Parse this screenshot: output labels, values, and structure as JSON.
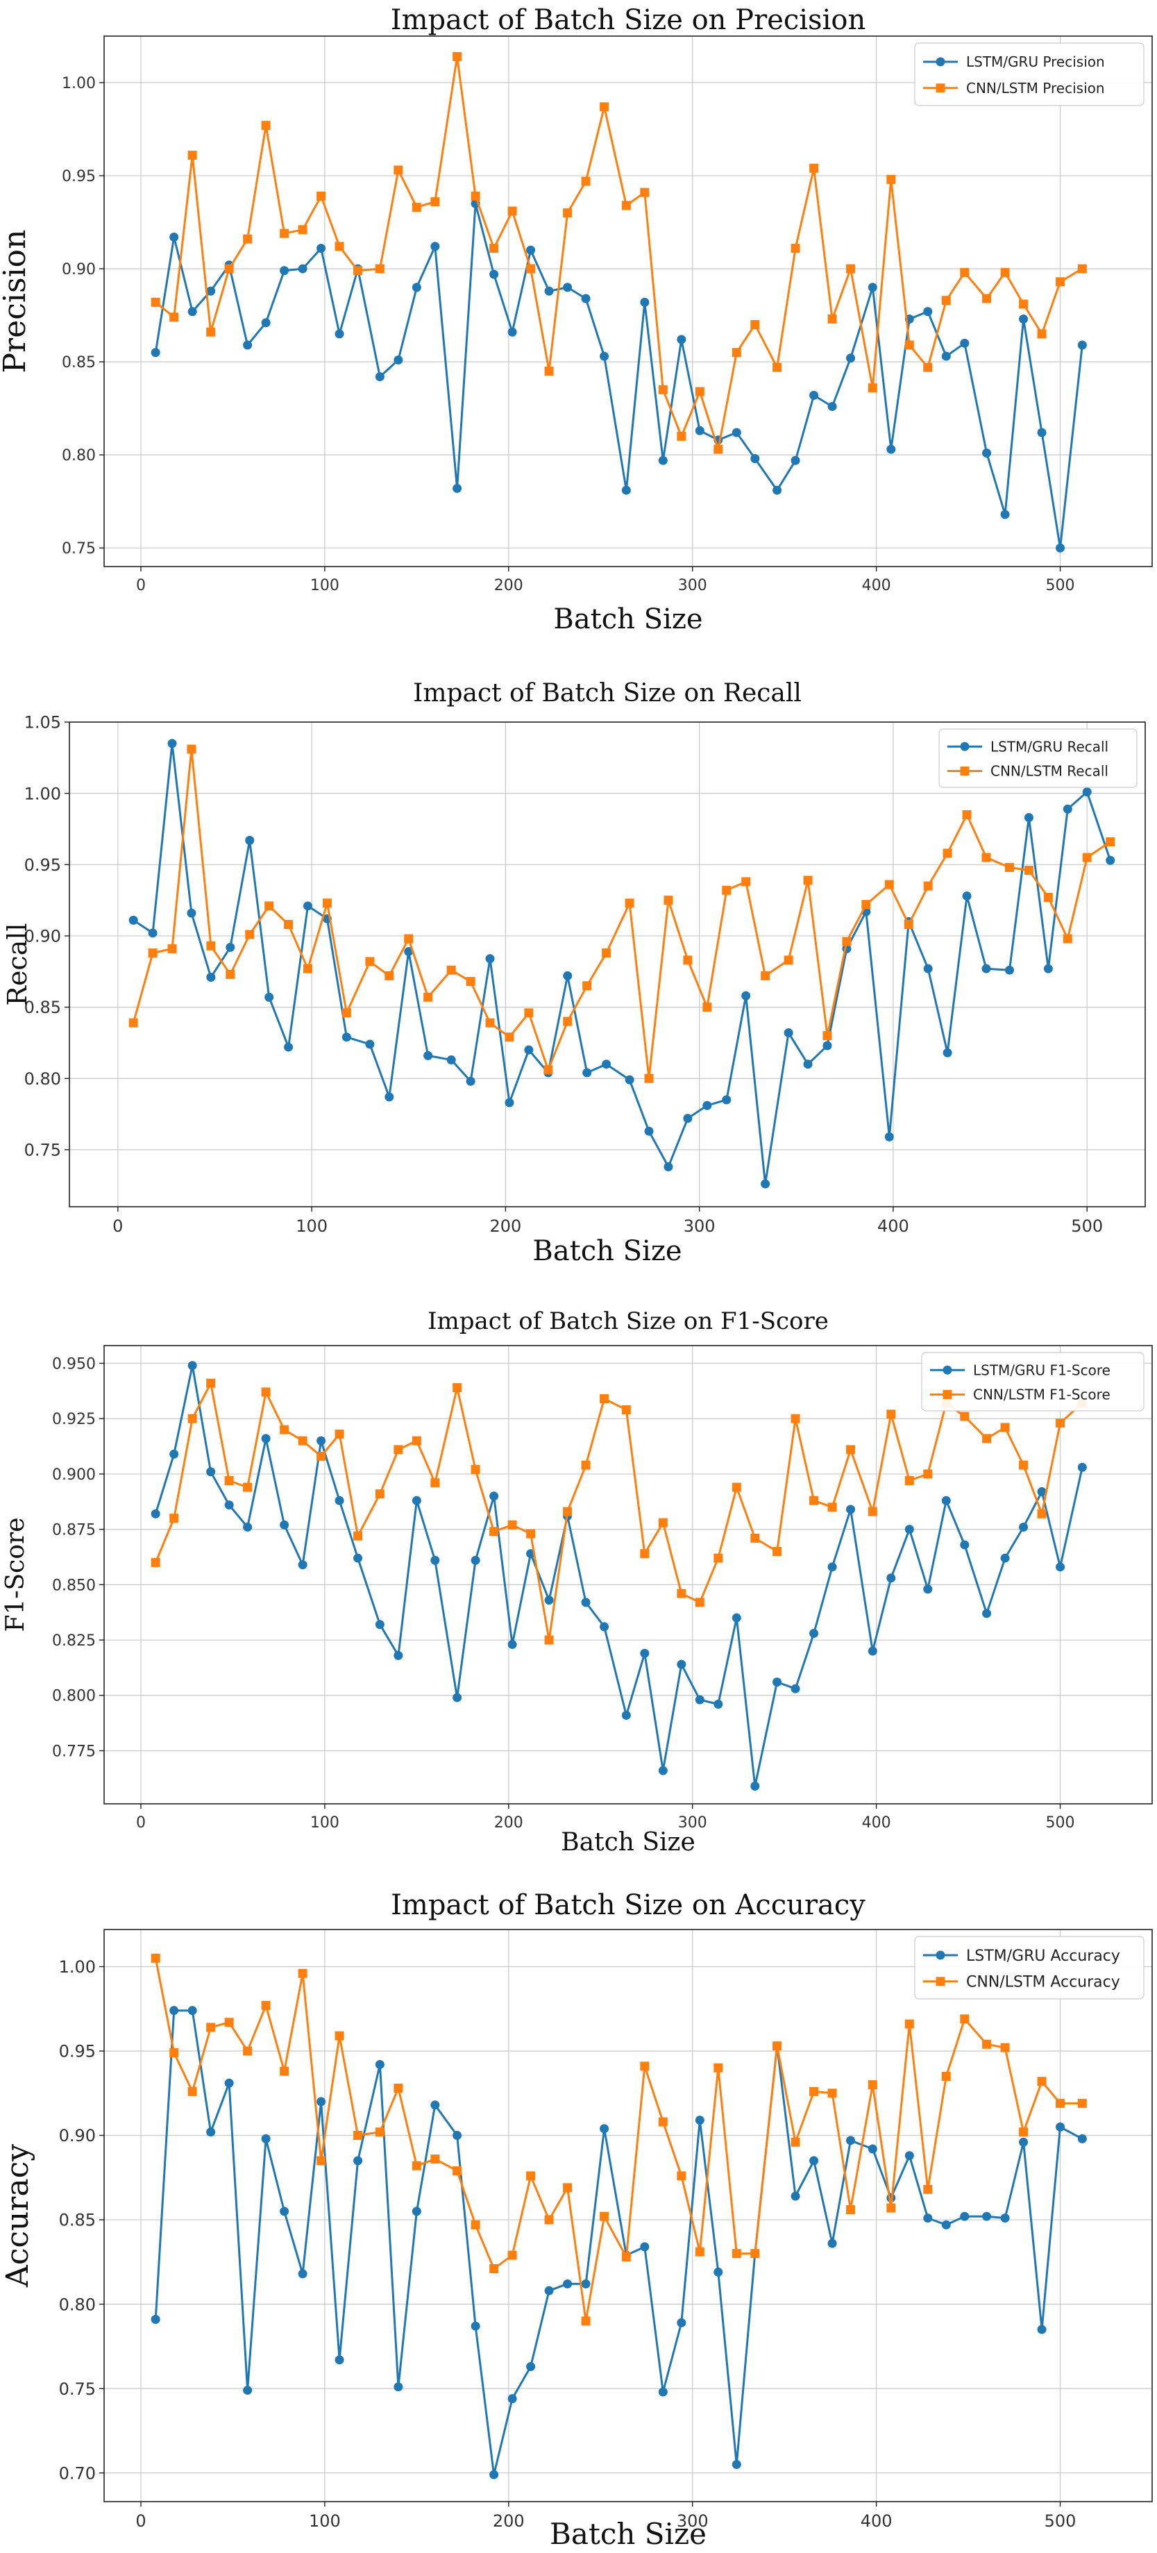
{
  "chart_data": [
    {
      "type": "line",
      "title": "Impact of Batch Size on Precision",
      "xlabel": "Batch Size",
      "ylabel": "Precision",
      "xlim": [
        -20,
        550
      ],
      "ylim": [
        0.74,
        1.025
      ],
      "x_ticks": [
        0,
        100,
        200,
        300,
        400,
        500
      ],
      "y_ticks": [
        0.75,
        0.8,
        0.85,
        0.9,
        0.95,
        1.0
      ],
      "y_tick_labels": [
        "0.75",
        "0.80",
        "0.85",
        "0.90",
        "0.95",
        "1.00"
      ],
      "grid": true,
      "legend_position": "top-right",
      "x": [
        8,
        18,
        28,
        38,
        48,
        58,
        68,
        78,
        88,
        98,
        108,
        118,
        130,
        140,
        150,
        160,
        172,
        182,
        192,
        202,
        212,
        222,
        232,
        242,
        252,
        264,
        274,
        284,
        294,
        304,
        314,
        324,
        334,
        346,
        356,
        366,
        376,
        386,
        398,
        408,
        418,
        428,
        438,
        448,
        460,
        470,
        480,
        490,
        500,
        512
      ],
      "series": [
        {
          "name": "LSTM/GRU Precision",
          "color": "#1f77b4",
          "marker": "circle",
          "values": [
            0.855,
            0.917,
            0.877,
            0.888,
            0.902,
            0.859,
            0.871,
            0.899,
            0.9,
            0.911,
            0.865,
            0.9,
            0.842,
            0.851,
            0.89,
            0.912,
            0.782,
            0.935,
            0.897,
            0.866,
            0.91,
            0.888,
            0.89,
            0.884,
            0.853,
            0.781,
            0.882,
            0.797,
            0.862,
            0.813,
            0.808,
            0.812,
            0.798,
            0.781,
            0.797,
            0.832,
            0.826,
            0.852,
            0.89,
            0.803,
            0.873,
            0.877,
            0.853,
            0.86,
            0.801,
            0.768,
            0.873,
            0.812,
            0.75,
            0.859
          ]
        },
        {
          "name": "CNN/LSTM Precision",
          "color": "#ff7f0e",
          "marker": "square",
          "values": [
            0.882,
            0.874,
            0.961,
            0.866,
            0.9,
            0.916,
            0.977,
            0.919,
            0.921,
            0.939,
            0.912,
            0.899,
            0.9,
            0.953,
            0.933,
            0.936,
            1.014,
            0.939,
            0.911,
            0.931,
            0.9,
            0.845,
            0.93,
            0.947,
            0.987,
            0.934,
            0.941,
            0.835,
            0.81,
            0.834,
            0.803,
            0.855,
            0.87,
            0.847,
            0.911,
            0.954,
            0.873,
            0.9,
            0.836,
            0.948,
            0.859,
            0.847,
            0.883,
            0.898,
            0.884,
            0.898,
            0.881,
            0.865,
            0.893,
            0.9
          ]
        }
      ]
    },
    {
      "type": "line",
      "title": "Impact of Batch Size on Recall",
      "xlabel": "Batch Size",
      "ylabel": "Recall",
      "xlim": [
        -25,
        530
      ],
      "ylim": [
        0.71,
        1.05
      ],
      "x_ticks": [
        0,
        100,
        200,
        300,
        400,
        500
      ],
      "y_ticks": [
        0.75,
        0.8,
        0.85,
        0.9,
        0.95,
        1.0,
        1.05
      ],
      "y_tick_labels": [
        "0.75",
        "0.80",
        "0.85",
        "0.90",
        "0.95",
        "1.00",
        "1.05"
      ],
      "grid": true,
      "legend_position": "top-right",
      "x": [
        8,
        18,
        28,
        38,
        48,
        58,
        68,
        78,
        88,
        98,
        108,
        118,
        130,
        140,
        150,
        160,
        172,
        182,
        192,
        202,
        212,
        222,
        232,
        242,
        252,
        264,
        274,
        284,
        294,
        304,
        314,
        324,
        334,
        346,
        356,
        366,
        376,
        386,
        398,
        408,
        418,
        428,
        438,
        448,
        460,
        470,
        480,
        490,
        500,
        512
      ],
      "series": [
        {
          "name": "LSTM/GRU Recall",
          "color": "#1f77b4",
          "marker": "circle",
          "values": [
            0.911,
            0.902,
            1.035,
            0.916,
            0.871,
            0.892,
            0.967,
            0.857,
            0.822,
            0.921,
            0.912,
            0.829,
            0.824,
            0.787,
            0.889,
            0.816,
            0.813,
            0.798,
            0.884,
            0.783,
            0.82,
            0.804,
            0.872,
            0.804,
            0.81,
            0.799,
            0.763,
            0.738,
            0.772,
            0.781,
            0.785,
            0.858,
            0.726,
            0.832,
            0.81,
            0.823,
            0.891,
            0.917,
            0.759,
            0.91,
            0.877,
            0.818,
            0.928,
            0.877,
            0.876,
            0.983,
            0.877,
            0.989,
            1.001,
            0.953
          ]
        },
        {
          "name": "CNN/LSTM Recall",
          "color": "#ff7f0e",
          "marker": "square",
          "values": [
            0.839,
            0.888,
            0.891,
            1.031,
            0.893,
            0.873,
            0.901,
            0.921,
            0.908,
            0.877,
            0.923,
            0.846,
            0.882,
            0.872,
            0.898,
            0.857,
            0.876,
            0.868,
            0.839,
            0.829,
            0.846,
            0.806,
            0.84,
            0.865,
            0.888,
            0.923,
            0.8,
            0.925,
            0.883,
            0.85,
            0.932,
            0.938,
            0.872,
            0.883,
            0.939,
            0.83,
            0.896,
            0.922,
            0.936,
            0.908,
            0.935,
            0.958,
            0.985,
            0.955,
            0.948,
            0.946,
            0.927,
            0.898,
            0.955,
            0.966
          ]
        }
      ]
    },
    {
      "type": "line",
      "title": "Impact of Batch Size on F1-Score",
      "xlabel": "Batch Size",
      "ylabel": "F1-Score",
      "xlim": [
        -20,
        550
      ],
      "ylim": [
        0.751,
        0.958
      ],
      "x_ticks": [
        0,
        100,
        200,
        300,
        400,
        500
      ],
      "y_ticks": [
        0.775,
        0.8,
        0.825,
        0.85,
        0.875,
        0.9,
        0.925,
        0.95
      ],
      "y_tick_labels": [
        "0.775",
        "0.800",
        "0.825",
        "0.850",
        "0.875",
        "0.900",
        "0.925",
        "0.950"
      ],
      "grid": true,
      "legend_position": "top-right",
      "x": [
        8,
        18,
        28,
        38,
        48,
        58,
        68,
        78,
        88,
        98,
        108,
        118,
        130,
        140,
        150,
        160,
        172,
        182,
        192,
        202,
        212,
        222,
        232,
        242,
        252,
        264,
        274,
        284,
        294,
        304,
        314,
        324,
        334,
        346,
        356,
        366,
        376,
        386,
        398,
        408,
        418,
        428,
        438,
        448,
        460,
        470,
        480,
        490,
        500,
        512
      ],
      "series": [
        {
          "name": "LSTM/GRU F1-Score",
          "color": "#1f77b4",
          "marker": "circle",
          "values": [
            0.882,
            0.909,
            0.949,
            0.901,
            0.886,
            0.876,
            0.916,
            0.877,
            0.859,
            0.915,
            0.888,
            0.862,
            0.832,
            0.818,
            0.888,
            0.861,
            0.799,
            0.861,
            0.89,
            0.823,
            0.864,
            0.843,
            0.881,
            0.842,
            0.831,
            0.791,
            0.819,
            0.766,
            0.814,
            0.798,
            0.796,
            0.835,
            0.759,
            0.806,
            0.803,
            0.828,
            0.858,
            0.884,
            0.82,
            0.853,
            0.875,
            0.848,
            0.888,
            0.868,
            0.837,
            0.862,
            0.876,
            0.892,
            0.858,
            0.903
          ]
        },
        {
          "name": "CNN/LSTM F1-Score",
          "color": "#ff7f0e",
          "marker": "square",
          "values": [
            0.86,
            0.88,
            0.925,
            0.941,
            0.897,
            0.894,
            0.937,
            0.92,
            0.915,
            0.908,
            0.918,
            0.872,
            0.891,
            0.911,
            0.915,
            0.896,
            0.939,
            0.902,
            0.874,
            0.877,
            0.873,
            0.825,
            0.883,
            0.904,
            0.934,
            0.929,
            0.864,
            0.878,
            0.846,
            0.842,
            0.862,
            0.894,
            0.871,
            0.865,
            0.925,
            0.888,
            0.885,
            0.911,
            0.883,
            0.927,
            0.897,
            0.9,
            0.932,
            0.926,
            0.916,
            0.921,
            0.904,
            0.882,
            0.923,
            0.932
          ]
        }
      ]
    },
    {
      "type": "line",
      "title": "Impact of Batch Size on Accuracy",
      "xlabel": "Batch Size",
      "ylabel": "Accuracy",
      "xlim": [
        -20,
        550
      ],
      "ylim": [
        0.683,
        1.022
      ],
      "x_ticks": [
        0,
        100,
        200,
        300,
        400,
        500
      ],
      "y_ticks": [
        0.7,
        0.75,
        0.8,
        0.85,
        0.9,
        0.95,
        1.0
      ],
      "y_tick_labels": [
        "0.70",
        "0.75",
        "0.80",
        "0.85",
        "0.90",
        "0.95",
        "1.00"
      ],
      "grid": true,
      "legend_position": "top-right",
      "x": [
        8,
        18,
        28,
        38,
        48,
        58,
        68,
        78,
        88,
        98,
        108,
        118,
        130,
        140,
        150,
        160,
        172,
        182,
        192,
        202,
        212,
        222,
        232,
        242,
        252,
        264,
        274,
        284,
        294,
        304,
        314,
        324,
        334,
        346,
        356,
        366,
        376,
        386,
        398,
        408,
        418,
        428,
        438,
        448,
        460,
        470,
        480,
        490,
        500,
        512
      ],
      "series": [
        {
          "name": "LSTM/GRU Accuracy",
          "color": "#1f77b4",
          "marker": "circle",
          "values": [
            0.791,
            0.974,
            0.974,
            0.902,
            0.931,
            0.749,
            0.898,
            0.855,
            0.818,
            0.92,
            0.767,
            0.885,
            0.942,
            0.751,
            0.855,
            0.918,
            0.9,
            0.787,
            0.699,
            0.744,
            0.763,
            0.808,
            0.812,
            0.812,
            0.904,
            0.829,
            0.834,
            0.748,
            0.789,
            0.909,
            0.819,
            0.705,
            0.83,
            0.953,
            0.864,
            0.885,
            0.836,
            0.897,
            0.892,
            0.863,
            0.888,
            0.851,
            0.847,
            0.852,
            0.852,
            0.851,
            0.896,
            0.785,
            0.905,
            0.898
          ]
        },
        {
          "name": "CNN/LSTM Accuracy",
          "color": "#ff7f0e",
          "marker": "square",
          "values": [
            1.005,
            0.949,
            0.926,
            0.964,
            0.967,
            0.95,
            0.977,
            0.938,
            0.996,
            0.885,
            0.959,
            0.9,
            0.902,
            0.928,
            0.882,
            0.886,
            0.879,
            0.847,
            0.821,
            0.829,
            0.876,
            0.85,
            0.869,
            0.79,
            0.852,
            0.828,
            0.941,
            0.908,
            0.876,
            0.831,
            0.94,
            0.83,
            0.83,
            0.953,
            0.896,
            0.926,
            0.925,
            0.856,
            0.93,
            0.857,
            0.966,
            0.868,
            0.935,
            0.969,
            0.954,
            0.952,
            0.902,
            0.932,
            0.919,
            0.919
          ]
        }
      ]
    }
  ]
}
